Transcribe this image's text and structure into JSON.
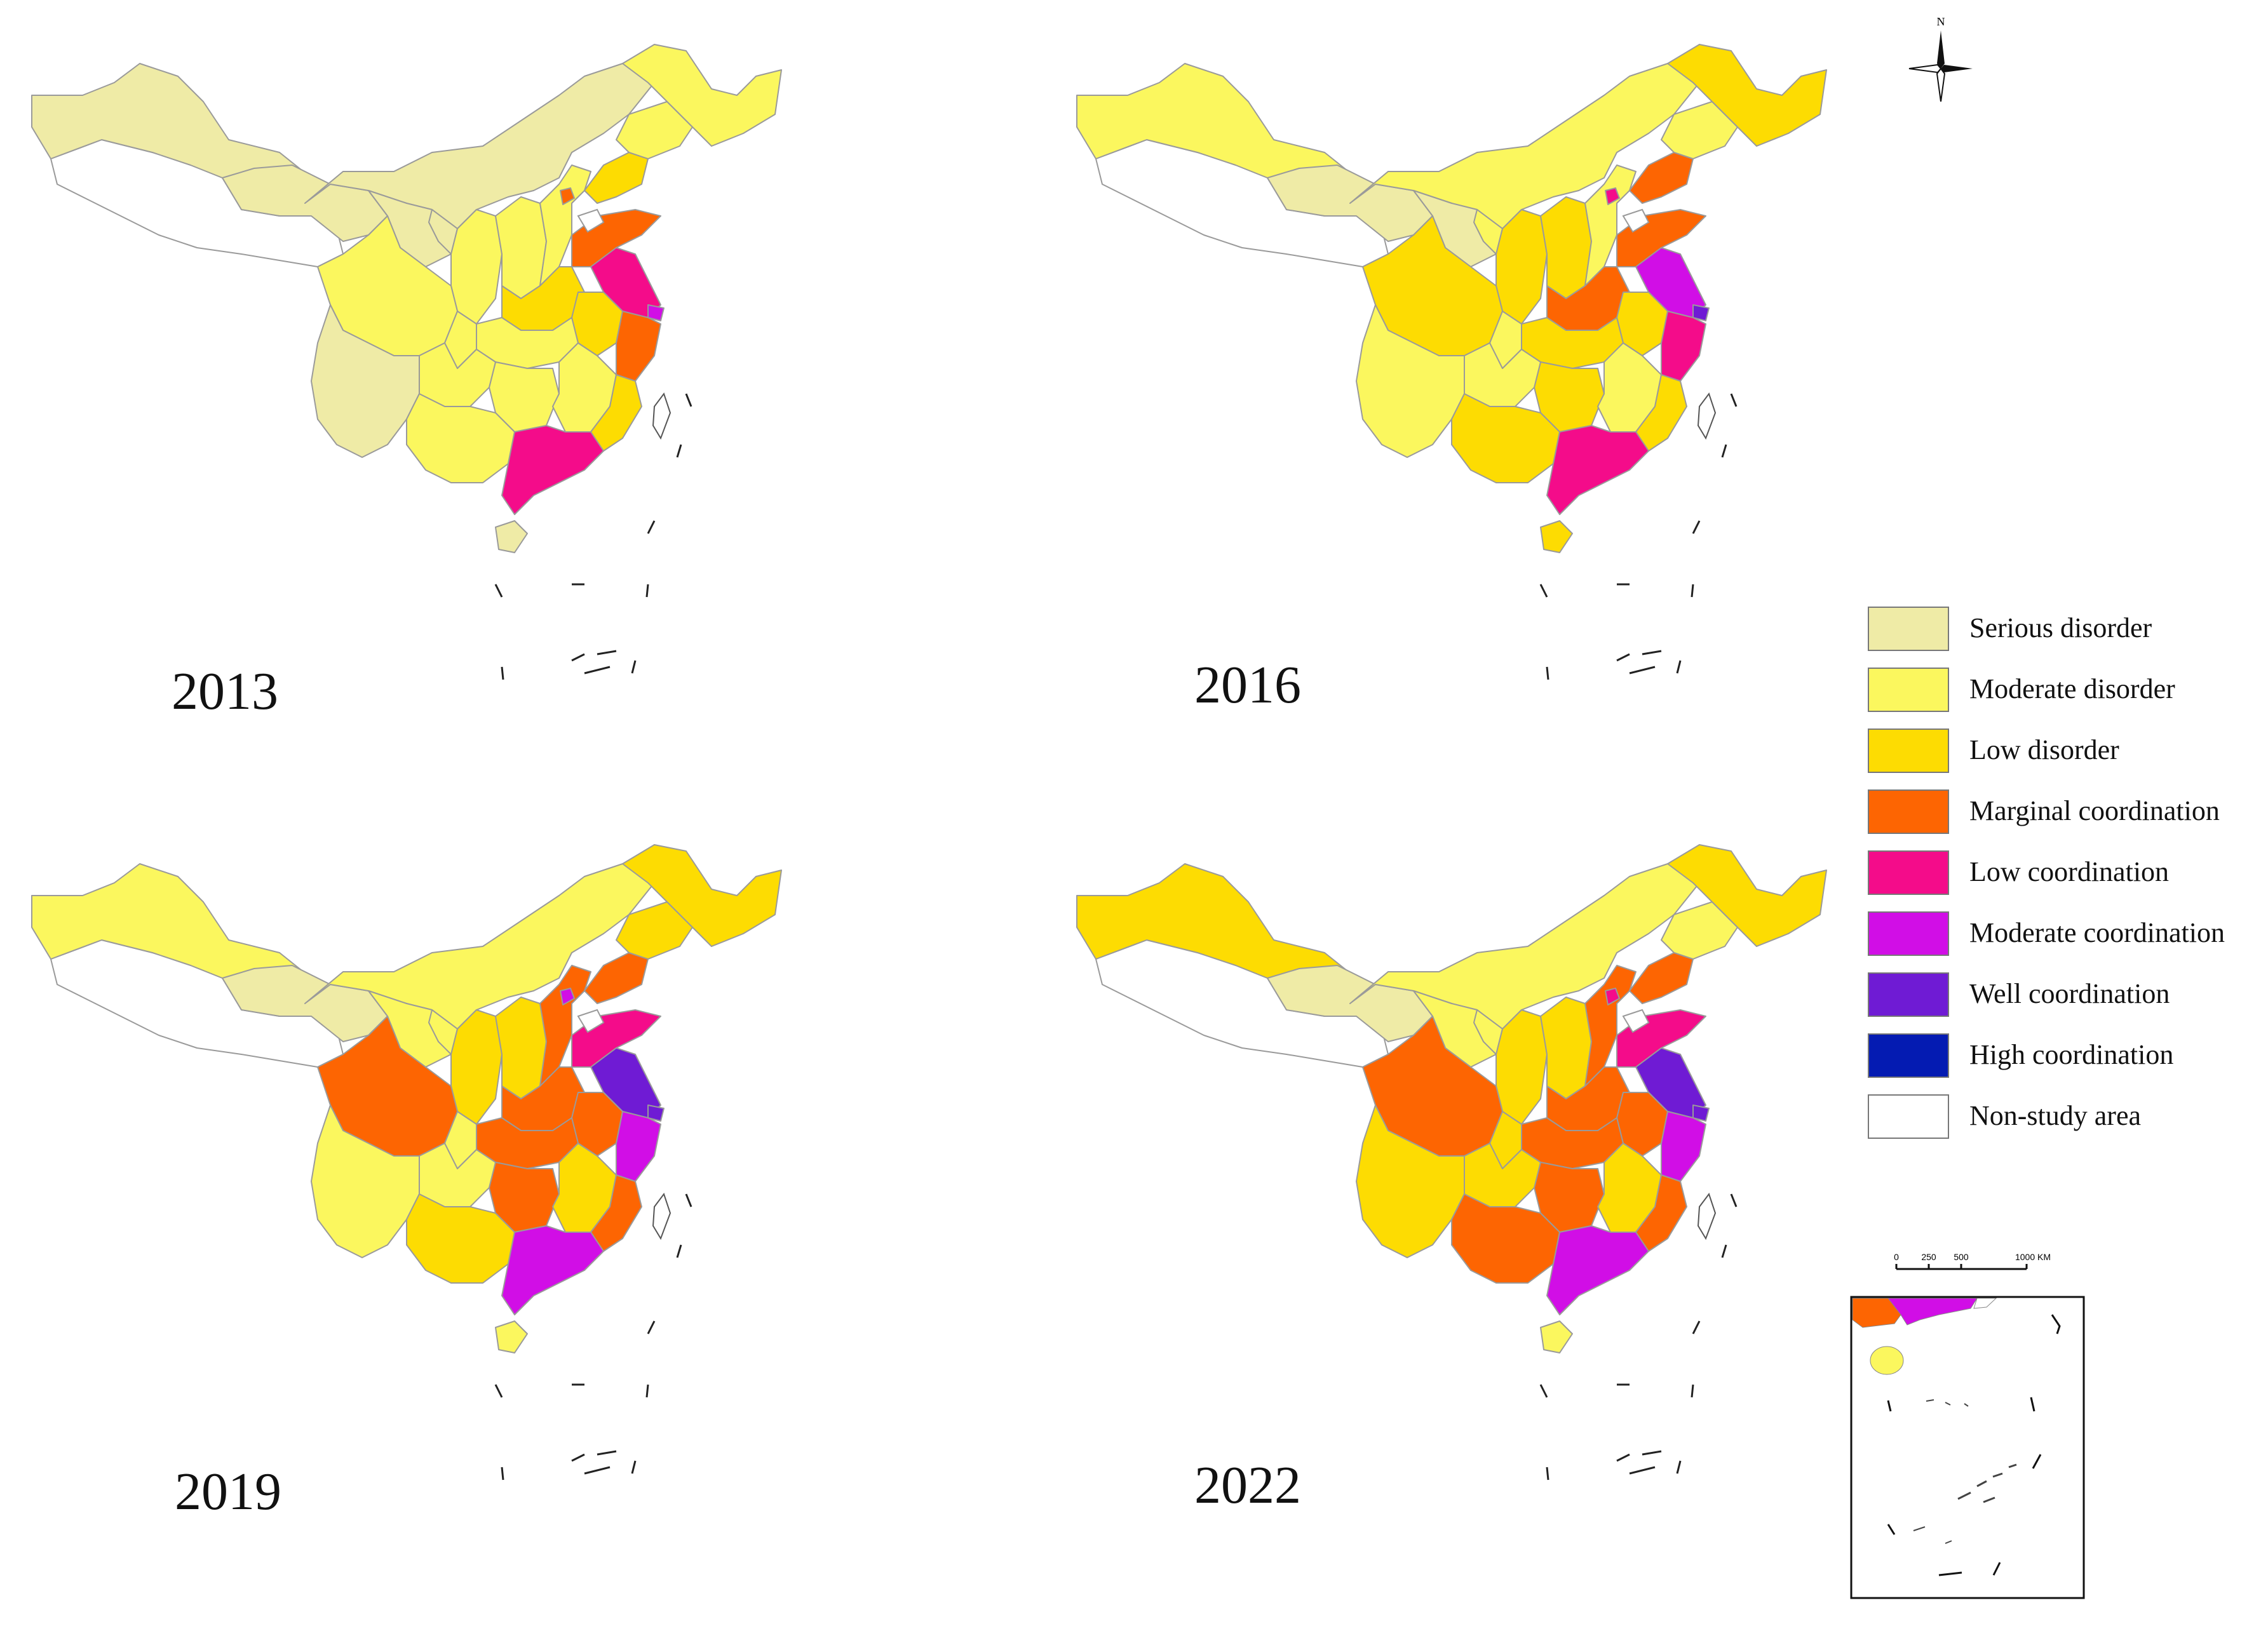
{
  "colors": {
    "serious_disorder": "#EFEBA6",
    "moderate_disorder": "#FBF75E",
    "low_disorder": "#FDDC02",
    "marginal_coordination": "#FD6502",
    "low_coordination": "#F40C8A",
    "moderate_coordination": "#D10EE6",
    "well_coordination": "#6F1BD4",
    "high_coordination": "#041BB2",
    "non_study_area": "#FFFFFF"
  },
  "panels": [
    {
      "year": "2013",
      "regions": {
        "northwest": "serious_disorder",
        "qinghai": "serious_disorder",
        "inner_mongolia": "serious_disorder",
        "gansu": "serious_disorder",
        "ningxia": "serious_disorder",
        "shaanxi": "moderate_disorder",
        "shanxi": "moderate_disorder",
        "hebei": "moderate_disorder",
        "beijing": "marginal_coordination",
        "liaoning": "low_disorder",
        "jilin": "moderate_disorder",
        "heilongjiang": "moderate_disorder",
        "shandong": "marginal_coordination",
        "henan": "low_disorder",
        "jiangsu": "low_coordination",
        "shanghai": "moderate_coordination",
        "anhui": "low_disorder",
        "hubei": "moderate_disorder",
        "zhejiang": "marginal_coordination",
        "sichuan": "moderate_disorder",
        "chongqing": "moderate_disorder",
        "hunan": "moderate_disorder",
        "jiangxi": "moderate_disorder",
        "fujian": "low_disorder",
        "guizhou": "moderate_disorder",
        "yunnan": "serious_disorder",
        "guangxi": "moderate_disorder",
        "guangdong": "low_coordination",
        "hainan": "serious_disorder"
      }
    },
    {
      "year": "2016",
      "regions": {
        "northwest": "moderate_disorder",
        "qinghai": "serious_disorder",
        "inner_mongolia": "moderate_disorder",
        "gansu": "serious_disorder",
        "ningxia": "moderate_disorder",
        "shaanxi": "low_disorder",
        "shanxi": "low_disorder",
        "hebei": "moderate_disorder",
        "beijing": "low_coordination",
        "liaoning": "marginal_coordination",
        "jilin": "moderate_disorder",
        "heilongjiang": "low_disorder",
        "shandong": "marginal_coordination",
        "henan": "marginal_coordination",
        "jiangsu": "moderate_coordination",
        "shanghai": "well_coordination",
        "anhui": "low_disorder",
        "hubei": "low_disorder",
        "zhejiang": "low_coordination",
        "sichuan": "low_disorder",
        "chongqing": "moderate_disorder",
        "hunan": "low_disorder",
        "jiangxi": "moderate_disorder",
        "fujian": "low_disorder",
        "guizhou": "moderate_disorder",
        "yunnan": "moderate_disorder",
        "guangxi": "low_disorder",
        "guangdong": "low_coordination",
        "hainan": "low_disorder"
      }
    },
    {
      "year": "2019",
      "regions": {
        "northwest": "moderate_disorder",
        "qinghai": "serious_disorder",
        "inner_mongolia": "moderate_disorder",
        "gansu": "moderate_disorder",
        "ningxia": "moderate_disorder",
        "shaanxi": "low_disorder",
        "shanxi": "low_disorder",
        "hebei": "marginal_coordination",
        "beijing": "moderate_coordination",
        "liaoning": "marginal_coordination",
        "jilin": "low_disorder",
        "heilongjiang": "low_disorder",
        "shandong": "low_coordination",
        "henan": "marginal_coordination",
        "jiangsu": "well_coordination",
        "shanghai": "well_coordination",
        "anhui": "marginal_coordination",
        "hubei": "marginal_coordination",
        "zhejiang": "moderate_coordination",
        "sichuan": "marginal_coordination",
        "chongqing": "moderate_disorder",
        "hunan": "marginal_coordination",
        "jiangxi": "low_disorder",
        "fujian": "marginal_coordination",
        "guizhou": "moderate_disorder",
        "yunnan": "moderate_disorder",
        "guangxi": "low_disorder",
        "guangdong": "moderate_coordination",
        "hainan": "moderate_disorder"
      }
    },
    {
      "year": "2022",
      "regions": {
        "northwest": "low_disorder",
        "qinghai": "serious_disorder",
        "inner_mongolia": "moderate_disorder",
        "gansu": "moderate_disorder",
        "ningxia": "moderate_disorder",
        "shaanxi": "low_disorder",
        "shanxi": "low_disorder",
        "hebei": "marginal_coordination",
        "beijing": "low_coordination",
        "liaoning": "marginal_coordination",
        "jilin": "moderate_disorder",
        "heilongjiang": "low_disorder",
        "shandong": "low_coordination",
        "henan": "marginal_coordination",
        "jiangsu": "well_coordination",
        "shanghai": "well_coordination",
        "anhui": "marginal_coordination",
        "hubei": "marginal_coordination",
        "zhejiang": "moderate_coordination",
        "sichuan": "marginal_coordination",
        "chongqing": "low_disorder",
        "hunan": "marginal_coordination",
        "jiangxi": "low_disorder",
        "fujian": "marginal_coordination",
        "guizhou": "low_disorder",
        "yunnan": "low_disorder",
        "guangxi": "marginal_coordination",
        "guangdong": "moderate_coordination",
        "hainan": "moderate_disorder"
      }
    }
  ],
  "legend": [
    {
      "key": "serious_disorder",
      "label": "Serious disorder"
    },
    {
      "key": "moderate_disorder",
      "label": "Moderate disorder"
    },
    {
      "key": "low_disorder",
      "label": "Low disorder"
    },
    {
      "key": "marginal_coordination",
      "label": "Marginal coordination"
    },
    {
      "key": "low_coordination",
      "label": "Low coordination"
    },
    {
      "key": "moderate_coordination",
      "label": "Moderate coordination"
    },
    {
      "key": "well_coordination",
      "label": "Well coordination"
    },
    {
      "key": "high_coordination",
      "label": "High coordination"
    },
    {
      "key": "non_study_area",
      "label": "Non-study area"
    }
  ],
  "north_arrow": {
    "label": "N"
  },
  "scale_bar": {
    "ticks": [
      "0",
      "250",
      "500",
      "1000 KM"
    ]
  }
}
